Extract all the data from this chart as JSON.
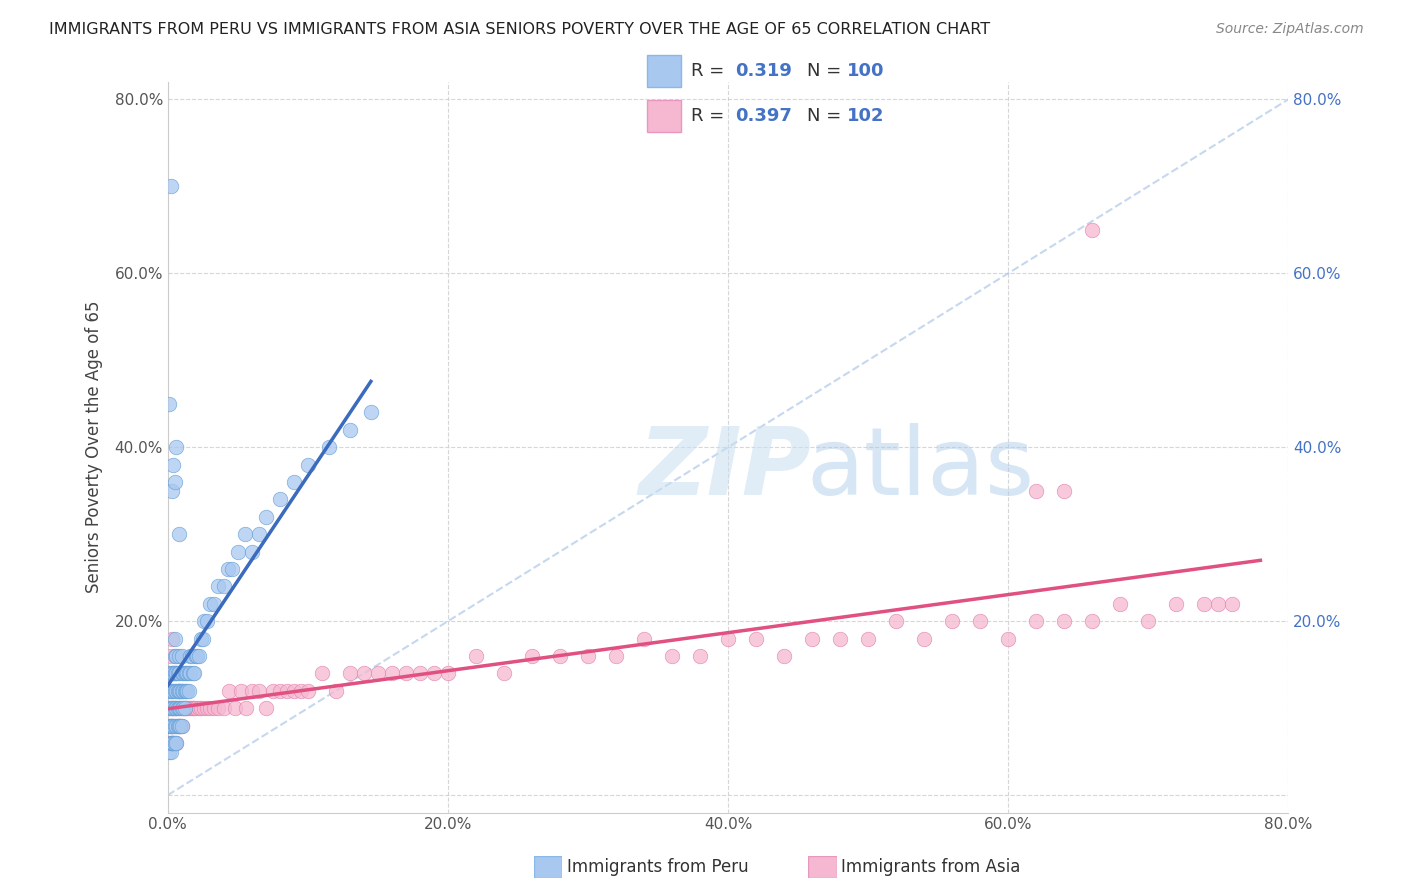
{
  "title": "IMMIGRANTS FROM PERU VS IMMIGRANTS FROM ASIA SENIORS POVERTY OVER THE AGE OF 65 CORRELATION CHART",
  "source": "Source: ZipAtlas.com",
  "ylabel": "Seniors Poverty Over the Age of 65",
  "xlim": [
    0.0,
    0.8
  ],
  "ylim": [
    -0.02,
    0.82
  ],
  "xticks": [
    0.0,
    0.2,
    0.4,
    0.6,
    0.8
  ],
  "yticks": [
    0.0,
    0.2,
    0.4,
    0.6,
    0.8
  ],
  "xticklabels": [
    "0.0%",
    "20.0%",
    "40.0%",
    "60.0%",
    "80.0%"
  ],
  "yticklabels": [
    "",
    "20.0%",
    "40.0%",
    "60.0%",
    "80.0%"
  ],
  "right_yticklabels": [
    "20.0%",
    "40.0%",
    "60.0%",
    "80.0%"
  ],
  "R1": 0.319,
  "N1": 100,
  "R2": 0.397,
  "N2": 102,
  "peru_color": "#a8c8f0",
  "peru_edge": "#5a9ad4",
  "peru_line": "#3a6bbd",
  "asia_color": "#f5b8d0",
  "asia_edge": "#e07aaa",
  "asia_line": "#e05080",
  "diagonal_color": "#aec8e8",
  "grid_color": "#cccccc",
  "label_color_blue": "#4472c4",
  "label_color_n": "#4472c4",
  "peru_x": [
    0.001,
    0.001,
    0.001,
    0.001,
    0.001,
    0.002,
    0.002,
    0.002,
    0.002,
    0.002,
    0.002,
    0.003,
    0.003,
    0.003,
    0.003,
    0.003,
    0.003,
    0.004,
    0.004,
    0.004,
    0.004,
    0.004,
    0.005,
    0.005,
    0.005,
    0.005,
    0.005,
    0.005,
    0.005,
    0.006,
    0.006,
    0.006,
    0.006,
    0.006,
    0.006,
    0.007,
    0.007,
    0.007,
    0.007,
    0.008,
    0.008,
    0.008,
    0.008,
    0.008,
    0.009,
    0.009,
    0.009,
    0.01,
    0.01,
    0.01,
    0.01,
    0.01,
    0.011,
    0.011,
    0.011,
    0.012,
    0.012,
    0.012,
    0.013,
    0.013,
    0.014,
    0.014,
    0.015,
    0.015,
    0.016,
    0.016,
    0.017,
    0.018,
    0.019,
    0.02,
    0.021,
    0.022,
    0.024,
    0.025,
    0.026,
    0.028,
    0.03,
    0.033,
    0.036,
    0.04,
    0.043,
    0.046,
    0.05,
    0.055,
    0.06,
    0.065,
    0.07,
    0.08,
    0.09,
    0.1,
    0.115,
    0.13,
    0.145,
    0.003,
    0.004,
    0.005,
    0.006,
    0.002,
    0.001,
    0.008
  ],
  "peru_y": [
    0.05,
    0.08,
    0.1,
    0.12,
    0.14,
    0.08,
    0.1,
    0.12,
    0.05,
    0.06,
    0.08,
    0.06,
    0.08,
    0.1,
    0.12,
    0.14,
    0.06,
    0.08,
    0.1,
    0.12,
    0.06,
    0.14,
    0.06,
    0.08,
    0.1,
    0.12,
    0.14,
    0.16,
    0.18,
    0.08,
    0.1,
    0.12,
    0.14,
    0.16,
    0.06,
    0.08,
    0.1,
    0.12,
    0.14,
    0.08,
    0.1,
    0.12,
    0.14,
    0.16,
    0.08,
    0.1,
    0.12,
    0.08,
    0.1,
    0.12,
    0.14,
    0.16,
    0.1,
    0.12,
    0.14,
    0.1,
    0.12,
    0.14,
    0.12,
    0.14,
    0.12,
    0.14,
    0.12,
    0.14,
    0.14,
    0.16,
    0.16,
    0.14,
    0.14,
    0.16,
    0.16,
    0.16,
    0.18,
    0.18,
    0.2,
    0.2,
    0.22,
    0.22,
    0.24,
    0.24,
    0.26,
    0.26,
    0.28,
    0.3,
    0.28,
    0.3,
    0.32,
    0.34,
    0.36,
    0.38,
    0.4,
    0.42,
    0.44,
    0.35,
    0.38,
    0.36,
    0.4,
    0.7,
    0.45,
    0.3
  ],
  "asia_x": [
    0.001,
    0.001,
    0.001,
    0.002,
    0.002,
    0.002,
    0.002,
    0.003,
    0.003,
    0.003,
    0.003,
    0.004,
    0.004,
    0.004,
    0.004,
    0.005,
    0.005,
    0.005,
    0.006,
    0.006,
    0.006,
    0.007,
    0.007,
    0.008,
    0.008,
    0.009,
    0.009,
    0.01,
    0.01,
    0.011,
    0.012,
    0.013,
    0.014,
    0.015,
    0.016,
    0.017,
    0.018,
    0.019,
    0.02,
    0.022,
    0.024,
    0.026,
    0.028,
    0.03,
    0.033,
    0.036,
    0.04,
    0.044,
    0.048,
    0.052,
    0.056,
    0.06,
    0.065,
    0.07,
    0.075,
    0.08,
    0.085,
    0.09,
    0.095,
    0.1,
    0.11,
    0.12,
    0.13,
    0.14,
    0.15,
    0.16,
    0.17,
    0.18,
    0.19,
    0.2,
    0.22,
    0.24,
    0.26,
    0.28,
    0.3,
    0.32,
    0.34,
    0.36,
    0.38,
    0.4,
    0.42,
    0.44,
    0.46,
    0.48,
    0.5,
    0.52,
    0.54,
    0.56,
    0.58,
    0.6,
    0.62,
    0.64,
    0.66,
    0.68,
    0.7,
    0.72,
    0.74,
    0.75,
    0.76,
    0.62,
    0.64,
    0.66
  ],
  "asia_y": [
    0.06,
    0.1,
    0.14,
    0.06,
    0.08,
    0.12,
    0.16,
    0.06,
    0.1,
    0.14,
    0.18,
    0.06,
    0.1,
    0.14,
    0.08,
    0.06,
    0.1,
    0.14,
    0.06,
    0.1,
    0.14,
    0.08,
    0.12,
    0.08,
    0.12,
    0.08,
    0.12,
    0.08,
    0.12,
    0.1,
    0.1,
    0.1,
    0.1,
    0.1,
    0.1,
    0.1,
    0.1,
    0.1,
    0.1,
    0.1,
    0.1,
    0.1,
    0.1,
    0.1,
    0.1,
    0.1,
    0.1,
    0.12,
    0.1,
    0.12,
    0.1,
    0.12,
    0.12,
    0.1,
    0.12,
    0.12,
    0.12,
    0.12,
    0.12,
    0.12,
    0.14,
    0.12,
    0.14,
    0.14,
    0.14,
    0.14,
    0.14,
    0.14,
    0.14,
    0.14,
    0.16,
    0.14,
    0.16,
    0.16,
    0.16,
    0.16,
    0.18,
    0.16,
    0.16,
    0.18,
    0.18,
    0.16,
    0.18,
    0.18,
    0.18,
    0.2,
    0.18,
    0.2,
    0.2,
    0.18,
    0.2,
    0.2,
    0.2,
    0.22,
    0.2,
    0.22,
    0.22,
    0.22,
    0.22,
    0.35,
    0.35,
    0.65
  ]
}
